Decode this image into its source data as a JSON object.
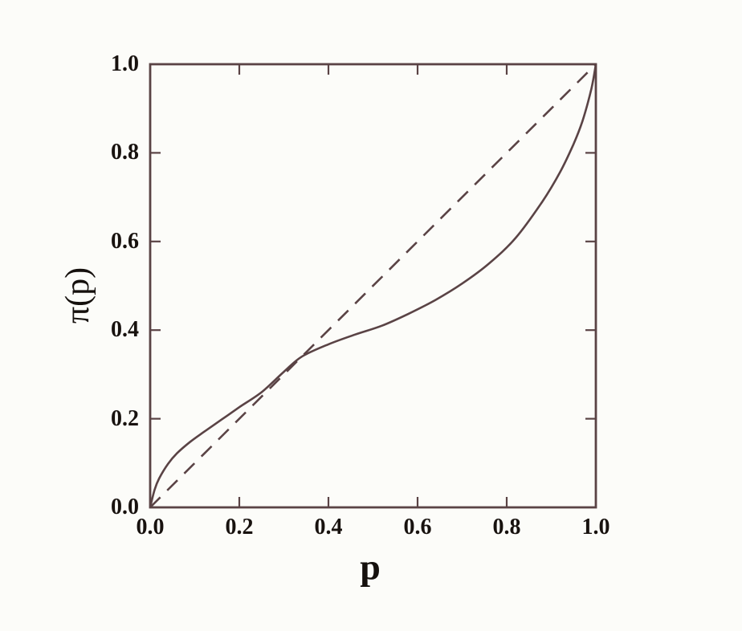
{
  "figure": {
    "background": "#fcfcf9",
    "line_color": "#5a4345",
    "text_color": "#18120f"
  },
  "chart_data": {
    "type": "line",
    "title": "",
    "xlabel": "p",
    "ylabel": "π(p)",
    "xlim": [
      0.0,
      1.0
    ],
    "ylim": [
      0.0,
      1.0
    ],
    "grid": false,
    "legend": false,
    "x_ticks": [
      0.0,
      0.2,
      0.4,
      0.6,
      0.8,
      1.0
    ],
    "y_ticks": [
      0.0,
      0.2,
      0.4,
      0.6,
      0.8,
      1.0
    ],
    "x_tick_labels": [
      "0.0",
      "0.2",
      "0.4",
      "0.6",
      "0.8",
      "1.0"
    ],
    "y_tick_labels": [
      "0.0",
      "0.2",
      "0.4",
      "0.6",
      "0.8",
      "1.0"
    ],
    "crossing_point": {
      "p": 0.34,
      "pi": 0.34
    },
    "series": [
      {
        "name": "probability-weighting-curve",
        "style": "solid",
        "x": [
          0,
          0.01,
          0.02,
          0.04,
          0.06,
          0.09,
          0.12,
          0.16,
          0.2,
          0.25,
          0.3,
          0.34,
          0.4,
          0.46,
          0.52,
          0.58,
          0.64,
          0.7,
          0.76,
          0.82,
          0.88,
          0.92,
          0.95,
          0.97,
          0.99,
          1.0
        ],
        "y": [
          0,
          0.04,
          0.065,
          0.098,
          0.122,
          0.148,
          0.17,
          0.198,
          0.226,
          0.26,
          0.306,
          0.34,
          0.368,
          0.39,
          0.41,
          0.437,
          0.468,
          0.505,
          0.55,
          0.608,
          0.69,
          0.757,
          0.82,
          0.872,
          0.945,
          1.0
        ]
      },
      {
        "name": "identity-line",
        "style": "dashed",
        "x": [
          0,
          1
        ],
        "y": [
          0,
          1
        ]
      }
    ]
  }
}
